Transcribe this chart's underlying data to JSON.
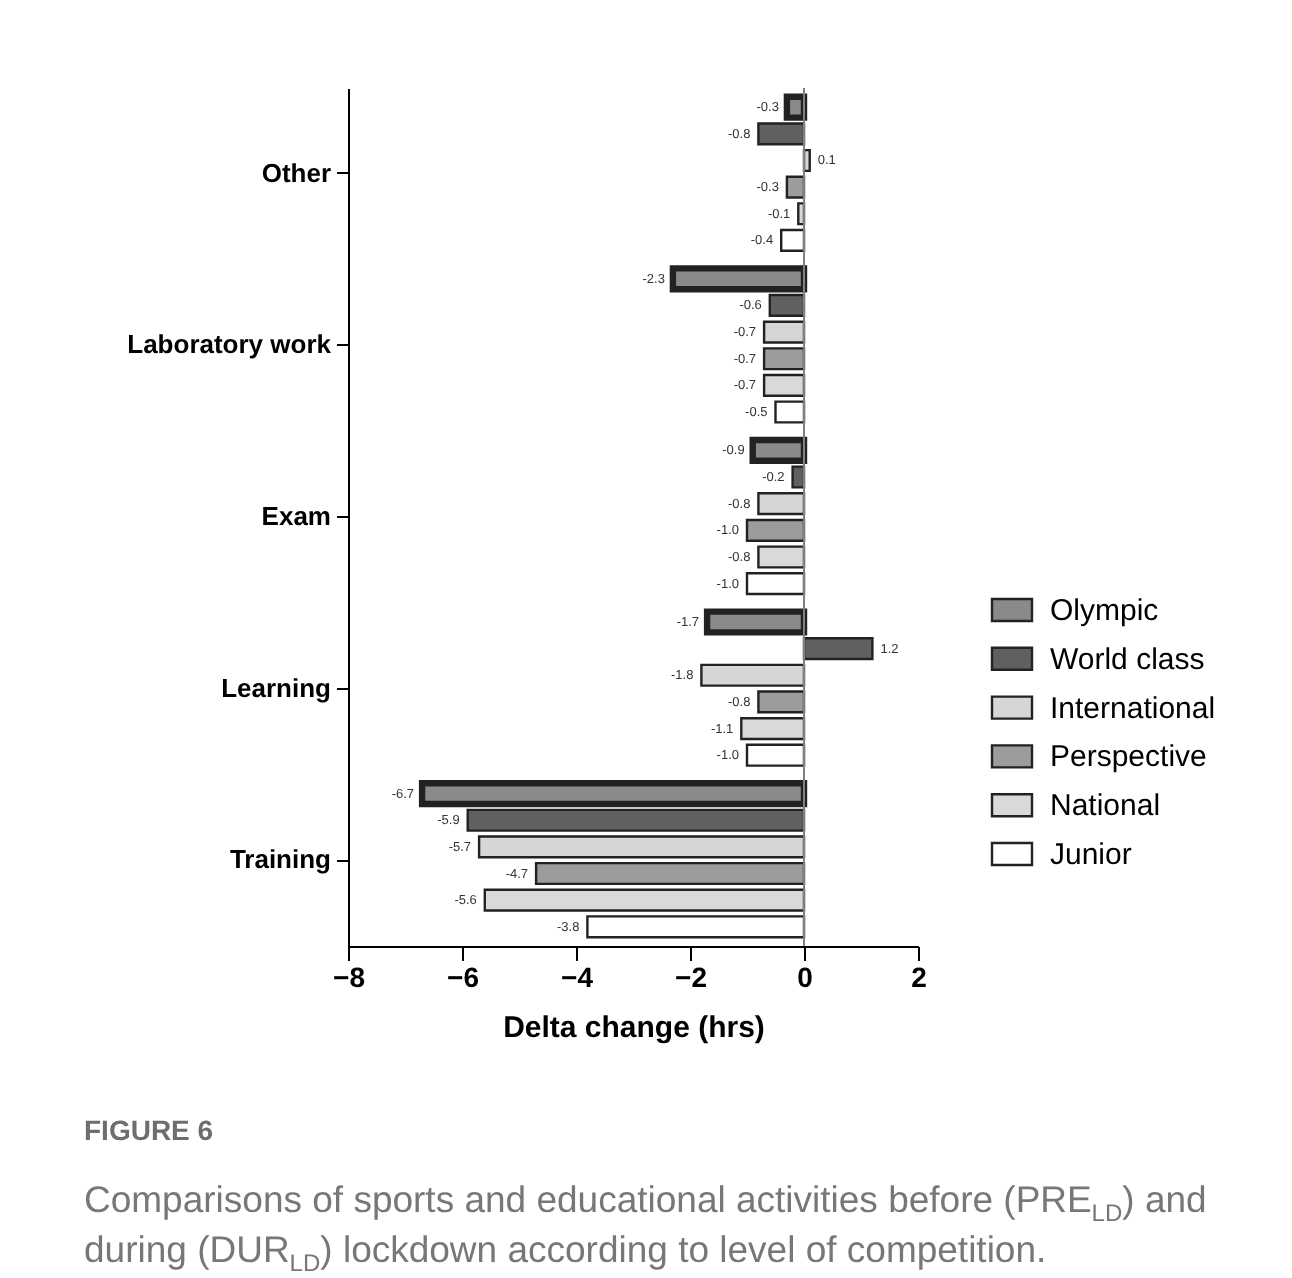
{
  "chart_data": {
    "type": "bar",
    "orientation": "horizontal",
    "title": "FIGURE 6",
    "subtitle": "Comparisons of sports and educational activities before (PRE$_{LD}$) and during (DUR$_{LD}$) lockdown according to level of competition.",
    "xlabel": "Delta change (hrs)",
    "categories": [
      "Other",
      "Laboratory work",
      "Exam",
      "Learning",
      "Training"
    ],
    "series": [
      {
        "name": "Olympic",
        "color": "#8a8a8a",
        "values": [
          -0.3,
          -2.3,
          -0.9,
          -1.7,
          -6.7
        ],
        "value_labels": [
          "-0.3",
          "-2.3",
          "-0.9",
          "-1.7",
          "-6.7"
        ]
      },
      {
        "name": "World class",
        "color": "#606060",
        "values": [
          -0.8,
          -0.6,
          -0.2,
          1.2,
          -5.9
        ],
        "value_labels": [
          "-0.8",
          "-0.6",
          "-0.2",
          "1.2",
          "-5.9"
        ]
      },
      {
        "name": "International",
        "color": "#d6d6d6",
        "values": [
          0.1,
          -0.7,
          -0.8,
          -1.8,
          -5.7
        ],
        "value_labels": [
          "0.1",
          "-0.7",
          "-0.8",
          "-1.8",
          "-5.7"
        ]
      },
      {
        "name": "Perspective",
        "color": "#9c9c9c",
        "values": [
          -0.3,
          -0.7,
          -1.0,
          -0.8,
          -4.7
        ],
        "value_labels": [
          "-0.3",
          "-0.7",
          "-1.0",
          "-0.8",
          "-4.7"
        ]
      },
      {
        "name": "National",
        "color": "#d9d9d9",
        "values": [
          -0.1,
          -0.7,
          -0.8,
          -1.1,
          -5.6
        ],
        "value_labels": [
          "-0.1",
          "-0.7",
          "-0.8",
          "-1.1",
          "-5.6"
        ]
      },
      {
        "name": "Junior",
        "color": "#ffffff",
        "values": [
          -0.4,
          -0.5,
          -1.0,
          -1.0,
          -3.8
        ],
        "value_labels": [
          "-0.4",
          "-0.5",
          "-1.0",
          "-1.0",
          "-3.8"
        ]
      }
    ],
    "xlim": [
      -8,
      2
    ],
    "xticks": [
      -8,
      -6,
      -4,
      -2,
      0,
      2
    ],
    "ref_lines": [
      {
        "axis": "x",
        "value": 0,
        "color": "#808080"
      }
    ],
    "legend": "right"
  }
}
